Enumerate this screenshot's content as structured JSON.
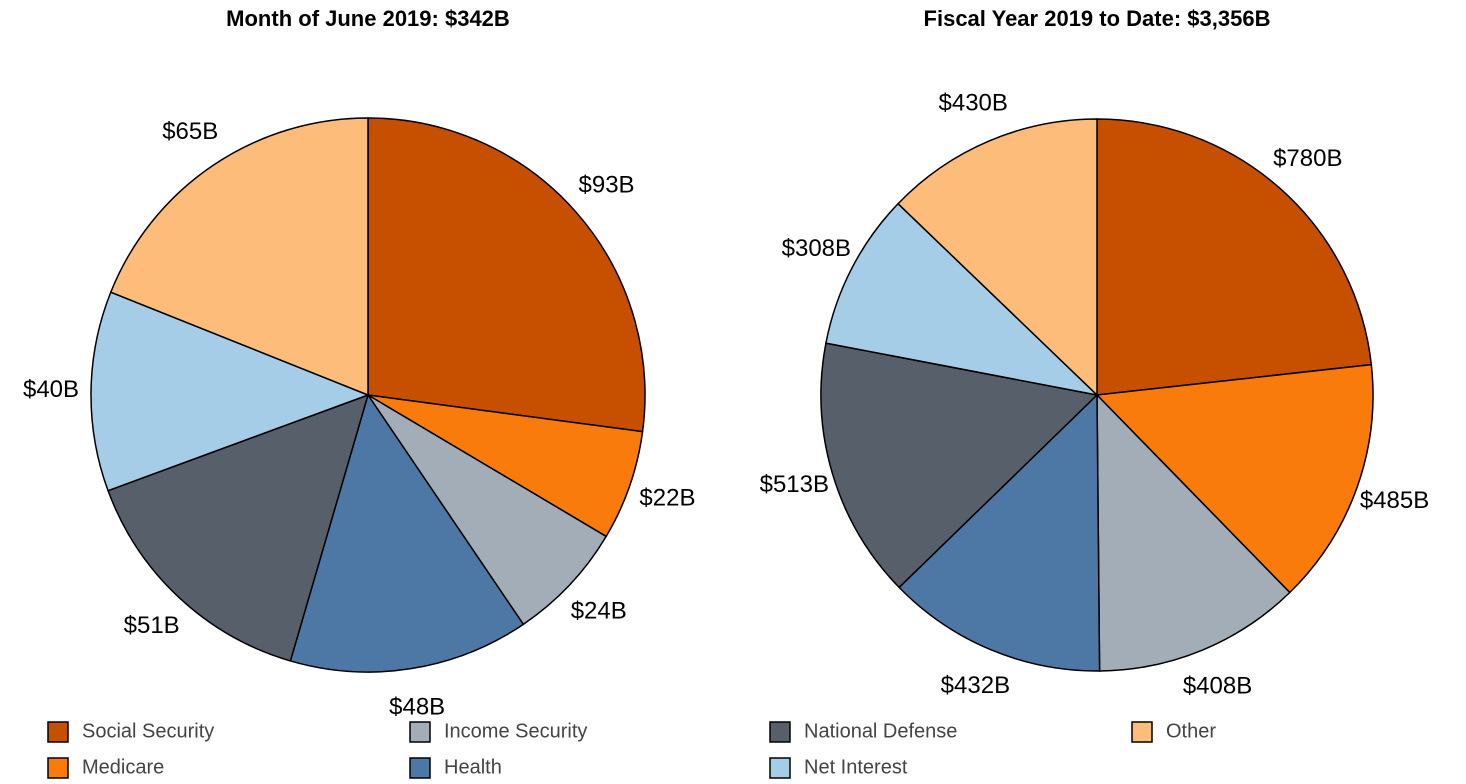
{
  "chart_data": [
    {
      "type": "pie",
      "title": "Month of June 2019: $342B",
      "categories": [
        "Social Security",
        "Medicare",
        "Income Security",
        "Health",
        "National Defense",
        "Net Interest",
        "Other"
      ],
      "values": [
        93,
        22,
        24,
        48,
        51,
        40,
        65
      ],
      "value_labels": [
        "$93B",
        "$22B",
        "$24B",
        "$48B",
        "$51B",
        "$40B",
        "$65B"
      ],
      "colors": [
        "#c75000",
        "#f97b0c",
        "#a3adb8",
        "#4d78a6",
        "#575f6b",
        "#a6cde8",
        "#febc7b"
      ]
    },
    {
      "type": "pie",
      "title": "Fiscal Year 2019 to Date: $3,356B",
      "categories": [
        "Social Security",
        "Medicare",
        "Income Security",
        "Health",
        "National Defense",
        "Net Interest",
        "Other"
      ],
      "values": [
        780,
        485,
        408,
        432,
        513,
        308,
        430
      ],
      "value_labels": [
        "$780B",
        "$485B",
        "$408B",
        "$432B",
        "$513B",
        "$308B",
        "$430B"
      ],
      "colors": [
        "#c75000",
        "#f97b0c",
        "#a3adb8",
        "#4d78a6",
        "#575f6b",
        "#a6cde8",
        "#febc7b"
      ]
    }
  ]
}
